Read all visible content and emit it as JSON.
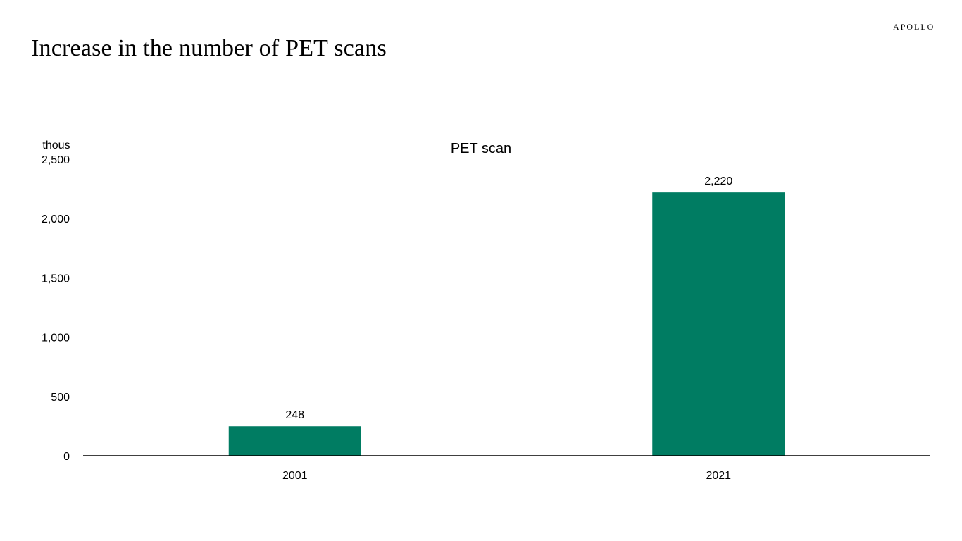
{
  "page": {
    "title": "Increase in the number of PET scans",
    "brand": "APOLLO"
  },
  "chart_data": {
    "type": "bar",
    "title": "PET scan",
    "xlabel": "",
    "ylabel": "thous",
    "categories": [
      "2001",
      "2021"
    ],
    "series": [
      {
        "values": [
          248,
          2220
        ],
        "color": "#007C62"
      }
    ],
    "data_labels": [
      "248",
      "2,220"
    ],
    "ylim": [
      0,
      2500
    ],
    "yticks": [
      0,
      500,
      1000,
      1500,
      2000,
      2500
    ],
    "ytick_labels": [
      "0",
      "500",
      "1,000",
      "1,500",
      "2,000",
      "2,500"
    ],
    "grid": false,
    "legend": "none"
  }
}
